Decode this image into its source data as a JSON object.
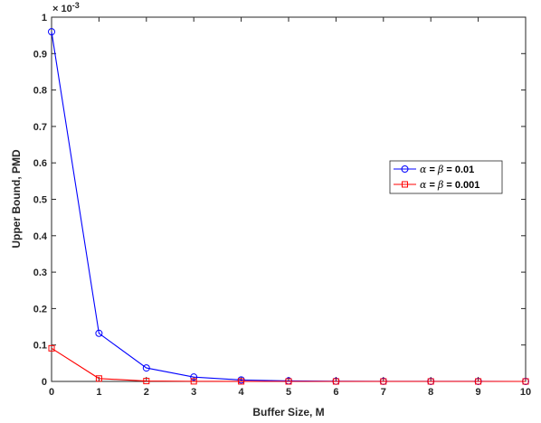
{
  "chart_data": {
    "type": "line",
    "title": "",
    "xlabel": "Buffer Size, M",
    "ylabel": "Upper Bound, PMD",
    "y_exponent_label": "× 10",
    "y_exponent_power": "-3",
    "xlim": [
      0,
      10
    ],
    "ylim": [
      0,
      1
    ],
    "x_ticks": [
      "0",
      "1",
      "2",
      "3",
      "4",
      "5",
      "6",
      "7",
      "8",
      "9",
      "10"
    ],
    "y_ticks": [
      "0",
      "0.1",
      "0.2",
      "0.3",
      "0.4",
      "0.5",
      "0.6",
      "0.7",
      "0.8",
      "0.9",
      "1"
    ],
    "grid": false,
    "legend_position": "right",
    "x": [
      0,
      1,
      2,
      3,
      4,
      5,
      6,
      7,
      8,
      9,
      10
    ],
    "series": [
      {
        "name": "α = β = 0.01",
        "legend_greek_1": "α",
        "legend_eq": " = ",
        "legend_greek_2": "β",
        "legend_value": " = 0.01",
        "color": "#0000ff",
        "marker": "circle",
        "values": [
          0.96,
          0.132,
          0.037,
          0.012,
          0.004,
          0.0015,
          0.0005,
          0.0002,
          0.0001,
          0.0001,
          0.0
        ]
      },
      {
        "name": "α = β = 0.001",
        "legend_greek_1": "α",
        "legend_eq": " = ",
        "legend_greek_2": "β",
        "legend_value": " = 0.001",
        "color": "#ff0000",
        "marker": "square",
        "values": [
          0.091,
          0.008,
          0.001,
          0.0003,
          0.0001,
          0.0,
          0.0,
          0.0,
          0.0,
          0.0,
          0.0
        ]
      }
    ]
  }
}
